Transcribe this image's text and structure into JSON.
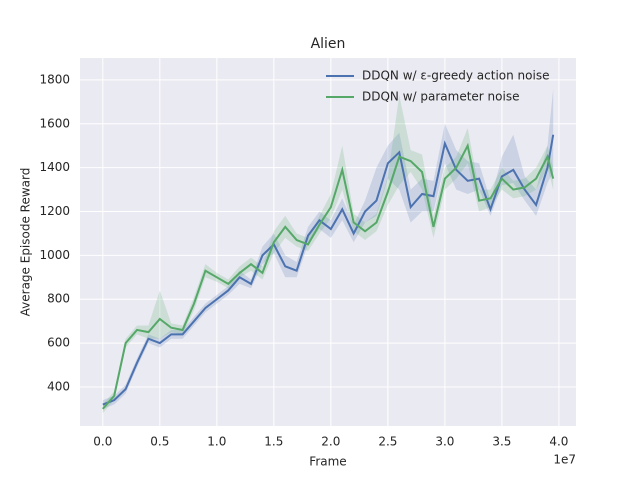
{
  "chart_data": {
    "type": "line",
    "title": "Alien",
    "x_label": "Frame",
    "y_label": "Average Episode Reward",
    "x_offset_label": "1e7",
    "x": [
      0,
      0.1,
      0.2,
      0.3,
      0.4,
      0.5,
      0.6,
      0.7,
      0.8,
      0.9,
      1.0,
      1.1,
      1.2,
      1.3,
      1.4,
      1.5,
      1.6,
      1.7,
      1.8,
      1.9,
      2.0,
      2.1,
      2.2,
      2.3,
      2.4,
      2.5,
      2.6,
      2.7,
      2.8,
      2.9,
      3.0,
      3.1,
      3.2,
      3.3,
      3.4,
      3.5,
      3.6,
      3.7,
      3.8,
      3.9,
      3.95
    ],
    "series": [
      {
        "name": "DDQN w/ ε-greedy action noise",
        "color": "#4c72b0",
        "values": [
          320,
          340,
          390,
          510,
          620,
          600,
          640,
          640,
          700,
          760,
          800,
          840,
          900,
          870,
          1000,
          1050,
          950,
          930,
          1090,
          1160,
          1120,
          1210,
          1100,
          1200,
          1250,
          1420,
          1470,
          1220,
          1280,
          1270,
          1510,
          1390,
          1340,
          1350,
          1210,
          1360,
          1390,
          1300,
          1230,
          1400,
          1550
        ],
        "lower": [
          300,
          320,
          370,
          490,
          600,
          580,
          620,
          620,
          680,
          740,
          780,
          820,
          870,
          850,
          960,
          1010,
          900,
          900,
          1050,
          1120,
          1080,
          1160,
          1060,
          1150,
          1180,
          1350,
          1300,
          1150,
          1200,
          1200,
          1420,
          1300,
          1280,
          1300,
          1180,
          1320,
          1330,
          1250,
          1180,
          1330,
          1380
        ],
        "upper": [
          340,
          360,
          410,
          530,
          640,
          620,
          660,
          660,
          720,
          780,
          820,
          860,
          930,
          890,
          1040,
          1100,
          1000,
          970,
          1130,
          1200,
          1160,
          1260,
          1140,
          1250,
          1400,
          1500,
          1560,
          1300,
          1350,
          1340,
          1600,
          1480,
          1430,
          1420,
          1250,
          1450,
          1550,
          1360,
          1300,
          1500,
          1760
        ]
      },
      {
        "name": "DDQN w/ parameter noise",
        "color": "#55a868",
        "values": [
          300,
          360,
          600,
          660,
          650,
          710,
          670,
          660,
          780,
          930,
          900,
          870,
          920,
          960,
          920,
          1060,
          1130,
          1070,
          1050,
          1140,
          1220,
          1390,
          1150,
          1110,
          1150,
          1290,
          1450,
          1430,
          1380,
          1130,
          1350,
          1400,
          1500,
          1250,
          1260,
          1350,
          1300,
          1310,
          1350,
          1450,
          1350
        ],
        "lower": [
          280,
          340,
          580,
          640,
          620,
          620,
          650,
          640,
          750,
          900,
          880,
          850,
          900,
          930,
          890,
          1010,
          1080,
          1040,
          1020,
          1100,
          1170,
          1300,
          1110,
          1070,
          1110,
          1230,
          1320,
          1380,
          1300,
          1080,
          1300,
          1350,
          1420,
          1200,
          1220,
          1300,
          1260,
          1270,
          1300,
          1400,
          1300
        ],
        "upper": [
          320,
          380,
          620,
          680,
          680,
          840,
          690,
          680,
          810,
          960,
          920,
          890,
          950,
          990,
          950,
          1110,
          1180,
          1100,
          1080,
          1180,
          1280,
          1500,
          1190,
          1150,
          1190,
          1360,
          1730,
          1480,
          1460,
          1180,
          1400,
          1450,
          1580,
          1300,
          1300,
          1400,
          1340,
          1350,
          1400,
          1500,
          1400
        ]
      }
    ],
    "xlim": [
      -0.2,
      4.15
    ],
    "ylim": [
      222,
      1900
    ],
    "xticks": [
      {
        "value": 0,
        "label": "0.0"
      },
      0.5,
      {
        "value": 1,
        "label": "1.0"
      },
      1.5,
      {
        "value": 2,
        "label": "2.0"
      },
      2.5,
      {
        "value": 3,
        "label": "3.0"
      },
      3.5,
      {
        "value": 4,
        "label": "4.0"
      }
    ],
    "yticks": [
      400,
      600,
      800,
      1000,
      1200,
      1400,
      1600,
      1800
    ],
    "grid": true,
    "legend": "upper right"
  }
}
